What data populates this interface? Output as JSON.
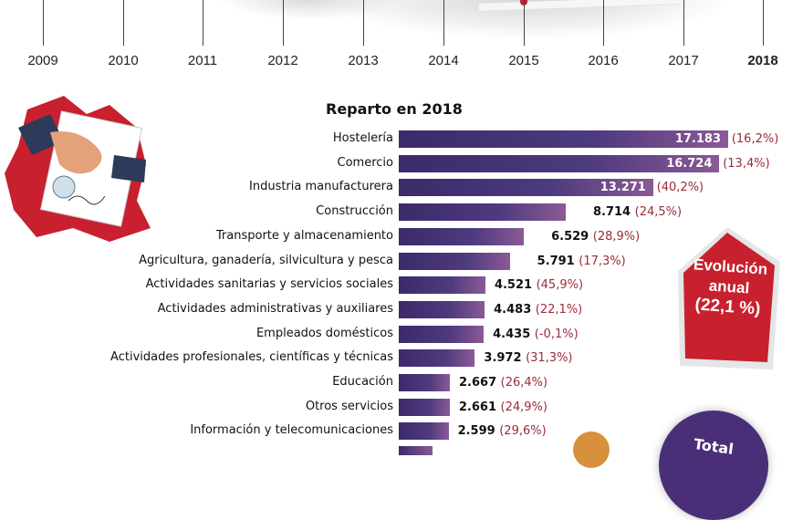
{
  "timeline": {
    "years": [
      "2009",
      "2010",
      "2011",
      "2012",
      "2013",
      "2014",
      "2015",
      "2016",
      "2017",
      "2018"
    ],
    "highlighted_year": "2018"
  },
  "chart_data": {
    "type": "bar",
    "orientation": "horizontal",
    "title": "Reparto en 2018",
    "categories": [
      "Hostelería",
      "Comercio",
      "Industria manufacturera",
      "Construcción",
      "Transporte y almacenamiento",
      "Agricultura, ganadería, silvicultura y pesca",
      "Actividades sanitarias y servicios sociales",
      "Actividades administrativas y auxiliares",
      "Empleados domésticos",
      "Actividades profesionales, científicas y técnicas",
      "Educación",
      "Otros servicios",
      "Información y telecomunicaciones"
    ],
    "values": [
      17183,
      16724,
      13271,
      8714,
      6529,
      5791,
      4521,
      4483,
      4435,
      3972,
      2667,
      2661,
      2599
    ],
    "value_labels": [
      "17.183",
      "16.724",
      "13.271",
      "8.714",
      "6.529",
      "5.791",
      "4.521",
      "4.483",
      "4.435",
      "3.972",
      "2.667",
      "2.661",
      "2.599"
    ],
    "change_labels": [
      "(16,2%)",
      "(13,4%)",
      "(40,2%)",
      "(24,5%)",
      "(28,9%)",
      "(17,3%)",
      "(45,9%)",
      "(22,1%)",
      "(-0,1%)",
      "(31,3%)",
      "(26,4%)",
      "(24,9%)",
      "(29,6%)"
    ],
    "colors": {
      "bar_start": "#3c2a6a",
      "bar_end": "#8a5a96",
      "change_text": "#9a2b3a"
    }
  },
  "badge": {
    "line1": "Evolución",
    "line2": "anual",
    "line3": "(22,1 %)",
    "color": "#c8202e"
  },
  "total_badge": {
    "label": "Total",
    "color": "#4a2f78"
  }
}
